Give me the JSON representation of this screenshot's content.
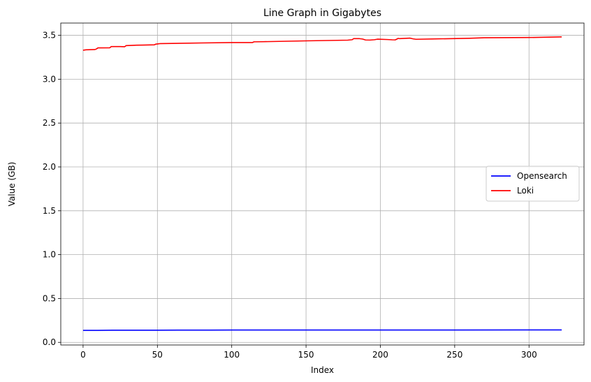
{
  "chart_data": {
    "type": "line",
    "title": "Line Graph in Gigabytes",
    "xlabel": "Index",
    "ylabel": "Value (GB)",
    "xlim": [
      -15,
      337
    ],
    "ylim": [
      -0.03,
      3.64
    ],
    "xticks": [
      0,
      50,
      100,
      150,
      200,
      250,
      300
    ],
    "yticks": [
      0.0,
      0.5,
      1.0,
      1.5,
      2.0,
      2.5,
      3.0,
      3.5
    ],
    "xtick_labels": [
      "0",
      "50",
      "100",
      "150",
      "200",
      "250",
      "300"
    ],
    "ytick_labels": [
      "0.0",
      "0.5",
      "1.0",
      "1.5",
      "2.0",
      "2.5",
      "3.0",
      "3.5"
    ],
    "grid": true,
    "legend_position": "center-right",
    "series": [
      {
        "name": "Opensearch",
        "color": "#0000ff",
        "x": [
          0,
          10,
          20,
          50,
          85,
          100,
          150,
          200,
          250,
          300,
          322
        ],
        "y": [
          0.137,
          0.137,
          0.139,
          0.139,
          0.14,
          0.141,
          0.141,
          0.141,
          0.141,
          0.142,
          0.142
        ]
      },
      {
        "name": "Loki",
        "color": "#ff0000",
        "x": [
          0,
          2,
          8,
          9,
          10,
          18,
          19,
          25,
          28,
          29,
          32,
          36,
          40,
          48,
          49,
          50,
          52,
          60,
          80,
          100,
          114,
          115,
          120,
          150,
          178,
          181,
          182,
          186,
          188,
          190,
          193,
          196,
          198,
          205,
          208,
          210,
          212,
          213,
          220,
          222,
          224,
          240,
          260,
          270,
          300,
          322
        ],
        "y": [
          3.33,
          3.335,
          3.338,
          3.345,
          3.357,
          3.358,
          3.372,
          3.372,
          3.37,
          3.383,
          3.385,
          3.388,
          3.389,
          3.392,
          3.4,
          3.402,
          3.406,
          3.408,
          3.413,
          3.418,
          3.418,
          3.426,
          3.427,
          3.437,
          3.445,
          3.45,
          3.462,
          3.462,
          3.458,
          3.447,
          3.446,
          3.45,
          3.456,
          3.452,
          3.449,
          3.448,
          3.465,
          3.462,
          3.468,
          3.46,
          3.455,
          3.46,
          3.466,
          3.472,
          3.475,
          3.482
        ]
      }
    ]
  }
}
